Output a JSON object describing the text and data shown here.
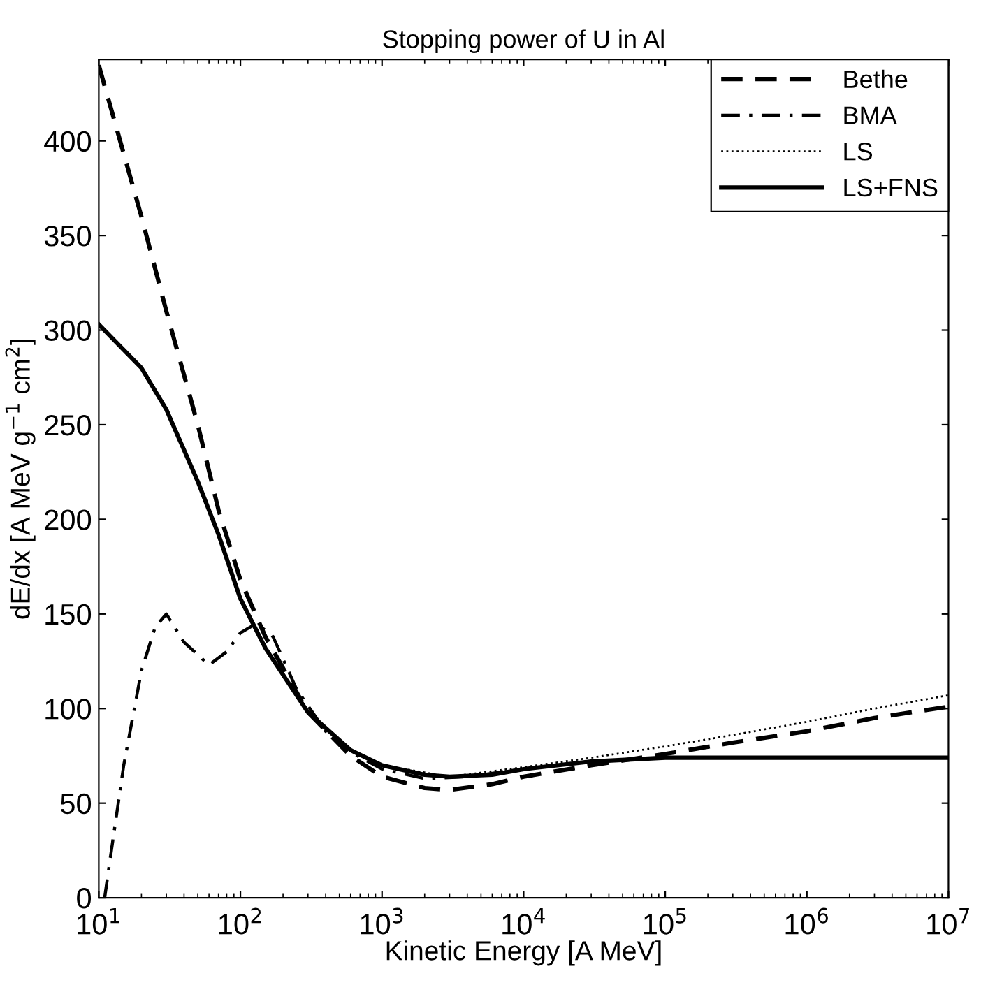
{
  "chart_data": {
    "type": "line",
    "title": "Stopping power of U in Al",
    "xlabel": "Kinetic Energy [A MeV]",
    "ylabel": "dE/dx [A MeV g$^{−1}$ cm$^{2}$]",
    "log": "x",
    "xlim": [
      10,
      10000000
    ],
    "ylim": [
      0,
      443
    ],
    "xticks": [
      {
        "value": 10,
        "label": "10$^{1}$"
      },
      {
        "value": 100,
        "label": "10$^{2}$"
      },
      {
        "value": 1000,
        "label": "10$^{3}$"
      },
      {
        "value": 10000,
        "label": "10$^{4}$"
      },
      {
        "value": 100000,
        "label": "10$^{5}$"
      },
      {
        "value": 1000000,
        "label": "10$^{6}$"
      },
      {
        "value": 10000000,
        "label": "10$^{7}$"
      }
    ],
    "yticks": [
      0,
      50,
      100,
      150,
      200,
      250,
      300,
      350,
      400
    ],
    "grid": false,
    "legend": "top right",
    "series": [
      {
        "name": "Bethe",
        "color": "#000000",
        "line_style": "dashed",
        "x": [
          10,
          20,
          30,
          50,
          70,
          100,
          150,
          300,
          600,
          1000,
          2000,
          3000,
          6000,
          10000,
          30000,
          100000,
          300000,
          1000000,
          3000000,
          10000000
        ],
        "values": [
          440,
          360,
          310,
          250,
          205,
          168,
          138,
          98,
          75,
          64,
          58,
          57,
          60,
          64,
          70,
          76,
          82,
          88,
          95,
          101
        ]
      },
      {
        "name": "BMA",
        "color": "#000000",
        "line_style": "dashdot",
        "x": [
          11,
          12,
          15,
          20,
          25,
          30,
          40,
          60,
          80,
          100,
          130,
          170,
          250,
          400,
          600,
          1000,
          2000,
          4000,
          10000
        ],
        "values": [
          0,
          20,
          70,
          120,
          143,
          150,
          135,
          123,
          130,
          140,
          145,
          138,
          110,
          88,
          77,
          68,
          63,
          64,
          68
        ]
      },
      {
        "name": "LS",
        "color": "#000000",
        "line_style": "dotted",
        "x": [
          300,
          600,
          1000,
          3000,
          10000,
          30000,
          100000,
          300000,
          1000000,
          3000000,
          10000000
        ],
        "values": [
          98,
          78,
          70,
          64,
          69,
          74,
          80,
          86,
          93,
          100,
          107
        ]
      },
      {
        "name": "LS+FNS",
        "color": "#000000",
        "line_style": "solid",
        "x": [
          10,
          20,
          30,
          50,
          70,
          100,
          150,
          300,
          600,
          1000,
          2000,
          3000,
          6000,
          10000,
          30000,
          100000,
          300000,
          1000000,
          3000000,
          10000000
        ],
        "values": [
          303,
          280,
          258,
          220,
          192,
          158,
          132,
          98,
          78,
          70,
          65,
          64,
          65,
          68,
          72,
          74,
          74,
          74,
          74,
          74
        ]
      }
    ]
  }
}
